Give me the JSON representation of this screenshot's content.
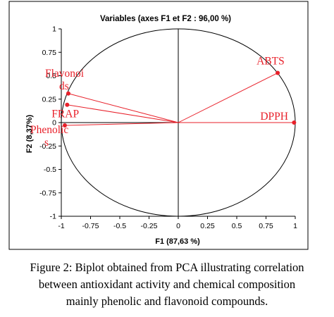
{
  "chart_data": {
    "type": "scatter",
    "title": "Variables (axes F1 et F2 : 96,00 %)",
    "xlabel": "F1 (87,63 %)",
    "ylabel": "F2 (8,37%)",
    "xlim": [
      -1,
      1
    ],
    "ylim": [
      -1,
      1
    ],
    "x_ticks": [
      "-1",
      "-0.75",
      "-0.5",
      "-0.25",
      "0",
      "0.25",
      "0.5",
      "0.75",
      "1"
    ],
    "y_ticks": [
      "-1",
      "-0.75",
      "-0.5",
      "-0.25",
      "0",
      "0.25",
      "0.5",
      "0.75",
      "1"
    ],
    "correlation_circle": true,
    "grid": false,
    "vectors": [
      {
        "label": "ABTS",
        "x": 0.85,
        "y": 0.53
      },
      {
        "label": "DPPH",
        "x": 0.99,
        "y": 0.0
      },
      {
        "label": "Flavonoids",
        "label_lines": [
          "Flavonoi",
          "ds"
        ],
        "x": -0.94,
        "y": 0.31
      },
      {
        "label": "FRAP",
        "x": -0.95,
        "y": 0.19
      },
      {
        "label": "Phenolics",
        "label_lines": [
          "Phenolic",
          "s"
        ],
        "x": -0.97,
        "y": -0.03
      }
    ],
    "colors": {
      "vectors": "#e8202a",
      "circle": "#000000",
      "axes": "#000000"
    }
  },
  "caption_lines": [
    "Figure 2: Biplot obtained from PCA illustrating correlation",
    "between antioxidant activity and chemical composition",
    "mainly phenolic and flavonoid compounds."
  ]
}
